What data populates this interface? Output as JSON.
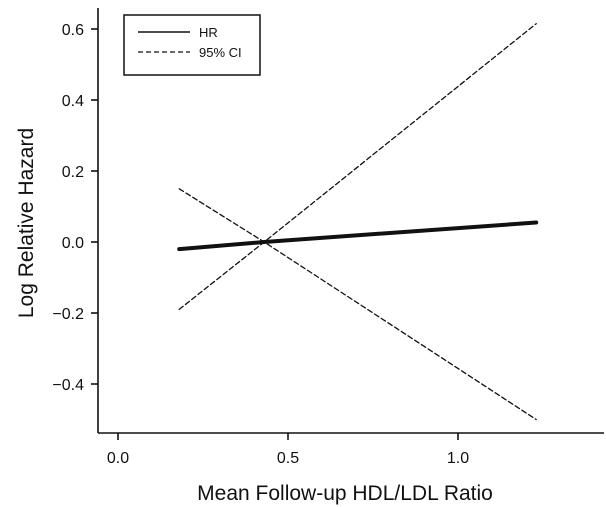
{
  "chart_data": {
    "type": "line",
    "title": "",
    "xlabel": "Mean Follow-up HDL/LDL Ratio",
    "ylabel": "Log Relative Hazard",
    "xlim": [
      0.0,
      1.35
    ],
    "ylim": [
      -0.55,
      0.65
    ],
    "x_ticks": [
      0.0,
      0.5,
      1.0
    ],
    "x_tick_labels": [
      "0.0",
      "0.5",
      "1.0"
    ],
    "y_ticks": [
      -0.4,
      -0.2,
      0.0,
      0.2,
      0.4,
      0.6
    ],
    "y_tick_labels": [
      "−0.4",
      "−0.2",
      "0.0",
      "0.2",
      "0.4",
      "0.6"
    ],
    "grid": false,
    "legend_position": "top-left",
    "legend": [
      {
        "label": "HR",
        "style": "solid"
      },
      {
        "label": "95% CI",
        "style": "dashed"
      }
    ],
    "series": [
      {
        "name": "HR",
        "style": "solid",
        "color": "#111111",
        "x": [
          0.18,
          0.43,
          1.23
        ],
        "y": [
          -0.02,
          0.0,
          0.055
        ]
      },
      {
        "name": "95% CI",
        "style": "dashed",
        "color": "#111111",
        "x": [
          0.18,
          0.43,
          1.23
        ],
        "y": [
          0.15,
          0.0,
          -0.5
        ]
      },
      {
        "name": "95% CI",
        "style": "dashed",
        "color": "#111111",
        "x": [
          0.18,
          0.43,
          1.23
        ],
        "y": [
          -0.19,
          0.0,
          0.615
        ]
      }
    ]
  }
}
